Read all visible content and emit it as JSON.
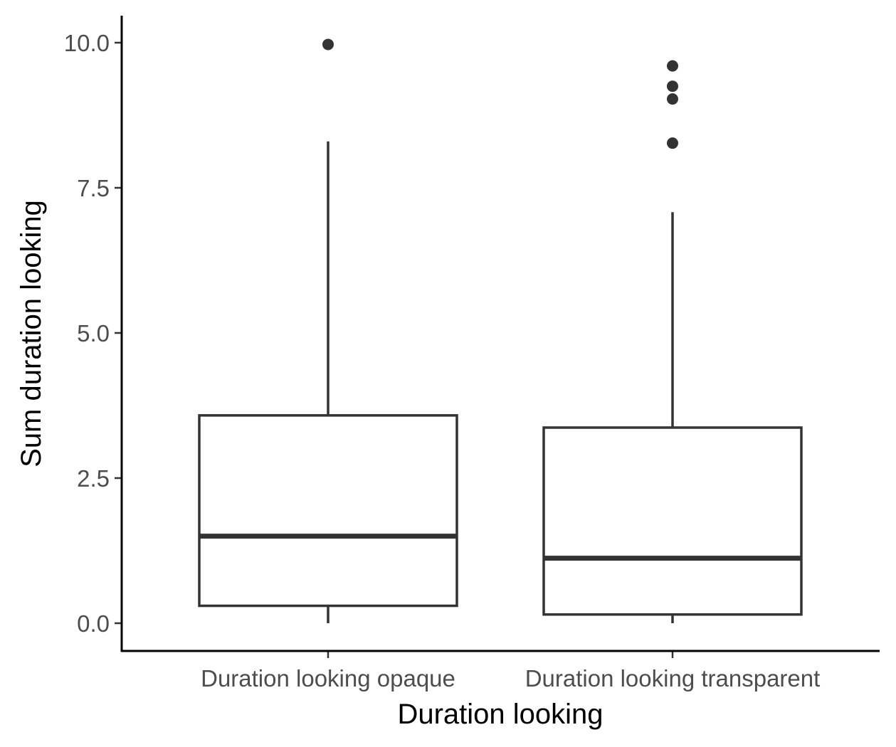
{
  "chart_data": {
    "type": "boxplot",
    "xlabel": "Duration looking",
    "ylabel": "Sum duration looking",
    "ylim": [
      -0.45,
      10.3
    ],
    "yticks": [
      0.0,
      2.5,
      5.0,
      7.5,
      10.0
    ],
    "ytick_labels": [
      "0.0",
      "2.5",
      "5.0",
      "7.5",
      "10.0"
    ],
    "categories": [
      "Duration looking opaque",
      "Duration looking transparent"
    ],
    "boxes": [
      {
        "category": "Duration looking opaque",
        "lower_whisker": 0.0,
        "q1": 0.3,
        "median": 1.5,
        "q3": 3.58,
        "upper_whisker": 8.3,
        "outliers": [
          9.97
        ]
      },
      {
        "category": "Duration looking transparent",
        "lower_whisker": 0.0,
        "q1": 0.15,
        "median": 1.12,
        "q3": 3.37,
        "upper_whisker": 7.08,
        "outliers": [
          8.27,
          9.03,
          9.25,
          9.6
        ]
      }
    ],
    "grid": false,
    "legend": "none",
    "colors": {
      "box_line": "#333333",
      "box_fill": "#ffffff",
      "axis": "#000000",
      "tick_text": "#4d4d4d"
    }
  }
}
